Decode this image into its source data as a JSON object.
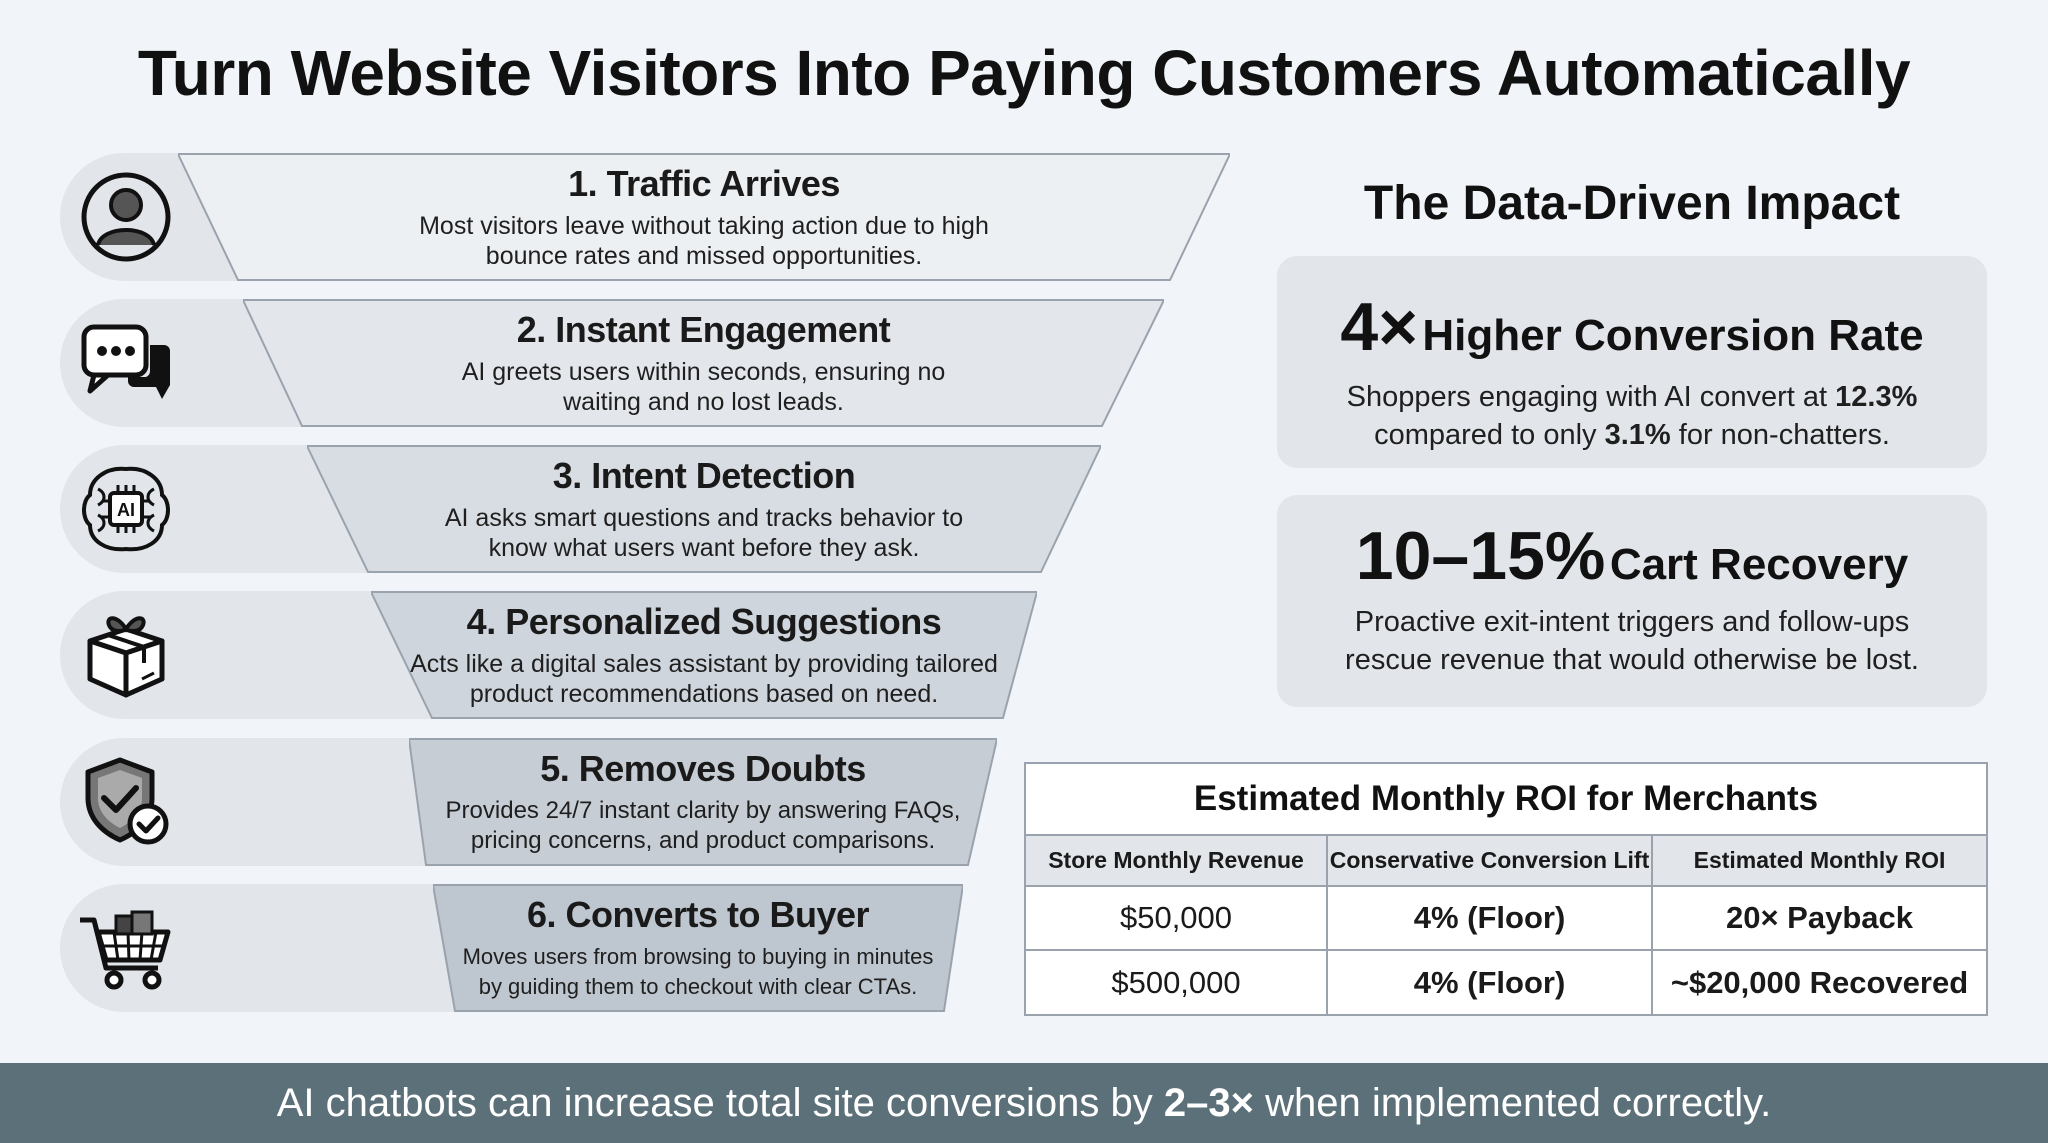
{
  "title": "Turn Website Visitors Into Paying Customers Automatically",
  "funnel": {
    "steps": [
      {
        "title": "1. Traffic Arrives",
        "desc1": "Most visitors leave without taking action due to high",
        "desc2": "bounce rates and missed opportunities.",
        "icon": "user-profile-icon"
      },
      {
        "title": "2. Instant Engagement",
        "desc1": "AI greets users within seconds, ensuring no",
        "desc2": "waiting and no lost leads.",
        "icon": "chat-bubbles-icon"
      },
      {
        "title": "3. Intent Detection",
        "desc1": "AI asks smart questions and tracks behavior to",
        "desc2": "know what users want before they ask.",
        "icon": "ai-brain-icon",
        "icon_text": "AI"
      },
      {
        "title": "4. Personalized Suggestions",
        "desc1": "Acts like a digital sales assistant by providing tailored",
        "desc2": "product recommendations based on need.",
        "icon": "gift-box-icon"
      },
      {
        "title": "5. Removes Doubts",
        "desc1": "Provides 24/7 instant clarity by answering FAQs,",
        "desc2": "pricing concerns, and product comparisons.",
        "icon": "shield-check-icon"
      },
      {
        "title": "6. Converts to Buyer",
        "desc1": "Moves users from browsing to buying in minutes",
        "desc2": "by guiding them to checkout with clear CTAs.",
        "icon": "shopping-cart-icon"
      }
    ]
  },
  "impact": {
    "title": "The Data-Driven Impact",
    "card1": {
      "big": "4×",
      "head": "Higher Conversion Rate",
      "line1_pre": "Shoppers engaging with AI convert at ",
      "line1_bold": "12.3%",
      "line2_pre": "compared to only ",
      "line2_bold": "3.1%",
      "line2_post": " for non-chatters."
    },
    "card2": {
      "big": "10–15%",
      "head": "Cart Recovery",
      "line1": "Proactive exit-intent triggers and follow-ups",
      "line2": "rescue revenue that would otherwise be lost."
    }
  },
  "roi": {
    "title": "Estimated Monthly ROI for Merchants",
    "headers": [
      "Store Monthly Revenue",
      "Conservative Conversion Lift",
      "Estimated Monthly ROI"
    ],
    "rows": [
      [
        "$50,000",
        "4% (Floor)",
        "20× Payback"
      ],
      [
        "$500,000",
        "4% (Floor)",
        "~$20,000 Recovered"
      ]
    ]
  },
  "footer": {
    "pre": "AI chatbots can increase total site conversions by ",
    "bold": "2–3×",
    "post": " when implemented correctly."
  },
  "colors": {
    "trap_fills": [
      "#edf0f3",
      "#e3e7ec",
      "#d8dde3",
      "#cfd5dc",
      "#c6cdd5",
      "#bec6cf"
    ],
    "pill": "#e2e5ea",
    "footer_bg": "#5b7079"
  }
}
